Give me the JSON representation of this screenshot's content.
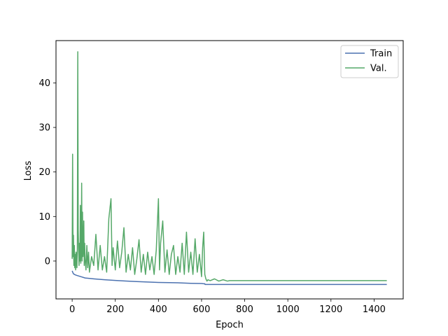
{
  "chart_data": {
    "type": "line",
    "title": "",
    "xlabel": "Epoch",
    "ylabel": "Loss",
    "xlim": [
      -75,
      1535
    ],
    "ylim": [
      -8.5,
      49.5
    ],
    "xticks": [
      0,
      200,
      400,
      600,
      800,
      1000,
      1200,
      1400
    ],
    "yticks": [
      0,
      10,
      20,
      30,
      40
    ],
    "grid": false,
    "legend_position": "top-right",
    "series": [
      {
        "name": "Train",
        "color": "#4c72b0",
        "x": [
          0,
          5,
          10,
          20,
          40,
          60,
          100,
          150,
          200,
          250,
          300,
          350,
          400,
          450,
          500,
          550,
          600,
          610,
          615,
          616,
          620,
          700,
          800,
          900,
          1000,
          1100,
          1200,
          1300,
          1400,
          1459
        ],
        "y": [
          -2.2,
          -2.8,
          -3.0,
          -3.2,
          -3.5,
          -3.8,
          -4.0,
          -4.2,
          -4.35,
          -4.5,
          -4.6,
          -4.7,
          -4.8,
          -4.85,
          -4.9,
          -5.0,
          -5.05,
          -5.1,
          -5.1,
          -5.25,
          -5.25,
          -5.25,
          -5.25,
          -5.25,
          -5.25,
          -5.25,
          -5.25,
          -5.25,
          -5.25,
          -5.25
        ]
      },
      {
        "name": "Val.",
        "color": "#55a868",
        "x": [
          0,
          2,
          4,
          6,
          8,
          10,
          12,
          14,
          16,
          18,
          20,
          22,
          24,
          26,
          28,
          30,
          32,
          34,
          36,
          38,
          40,
          42,
          44,
          46,
          48,
          50,
          52,
          54,
          56,
          58,
          60,
          64,
          68,
          72,
          76,
          80,
          90,
          100,
          110,
          120,
          130,
          140,
          150,
          160,
          170,
          180,
          185,
          190,
          200,
          210,
          220,
          230,
          240,
          250,
          260,
          270,
          280,
          290,
          300,
          310,
          320,
          330,
          340,
          350,
          360,
          370,
          380,
          390,
          400,
          405,
          410,
          420,
          430,
          440,
          450,
          460,
          470,
          480,
          490,
          500,
          510,
          520,
          530,
          540,
          550,
          560,
          570,
          580,
          590,
          600,
          605,
          610,
          615,
          620,
          625,
          630,
          640,
          660,
          680,
          700,
          720,
          730,
          740,
          800,
          900,
          1000,
          1100,
          1200,
          1300,
          1400,
          1459
        ],
        "y": [
          0.5,
          24.0,
          1.0,
          5.8,
          -1.0,
          3.5,
          -1.5,
          1.5,
          -2.0,
          2.0,
          1.0,
          -1.5,
          3.0,
          47.0,
          7.0,
          2.0,
          -1.0,
          4.0,
          0.0,
          12.5,
          -0.5,
          2.5,
          17.5,
          0.0,
          11.0,
          1.0,
          3.0,
          9.0,
          -1.0,
          4.0,
          0.5,
          -2.0,
          3.5,
          -1.5,
          2.0,
          -2.5,
          1.0,
          -1.0,
          6.0,
          -2.0,
          3.5,
          -2.0,
          1.0,
          -2.5,
          9.5,
          14.0,
          -1.0,
          3.0,
          -2.0,
          4.5,
          -1.5,
          2.0,
          7.5,
          -2.5,
          1.5,
          -2.0,
          3.0,
          -3.0,
          0.5,
          4.8,
          -2.5,
          1.5,
          -3.0,
          2.0,
          -2.0,
          1.0,
          -3.0,
          2.5,
          14.0,
          -2.0,
          4.0,
          9.0,
          -2.5,
          2.5,
          -3.0,
          1.5,
          3.5,
          -3.0,
          1.0,
          -2.5,
          4.0,
          -3.0,
          6.5,
          -2.5,
          2.0,
          -3.0,
          5.0,
          -2.5,
          1.5,
          -3.5,
          3.0,
          6.5,
          -3.0,
          -4.0,
          -4.5,
          -4.2,
          -4.4,
          -4.0,
          -4.5,
          -4.2,
          -4.5,
          -4.4,
          -4.4,
          -4.4,
          -4.4,
          -4.4,
          -4.4,
          -4.4,
          -4.4,
          -4.4,
          -4.4
        ]
      }
    ]
  }
}
